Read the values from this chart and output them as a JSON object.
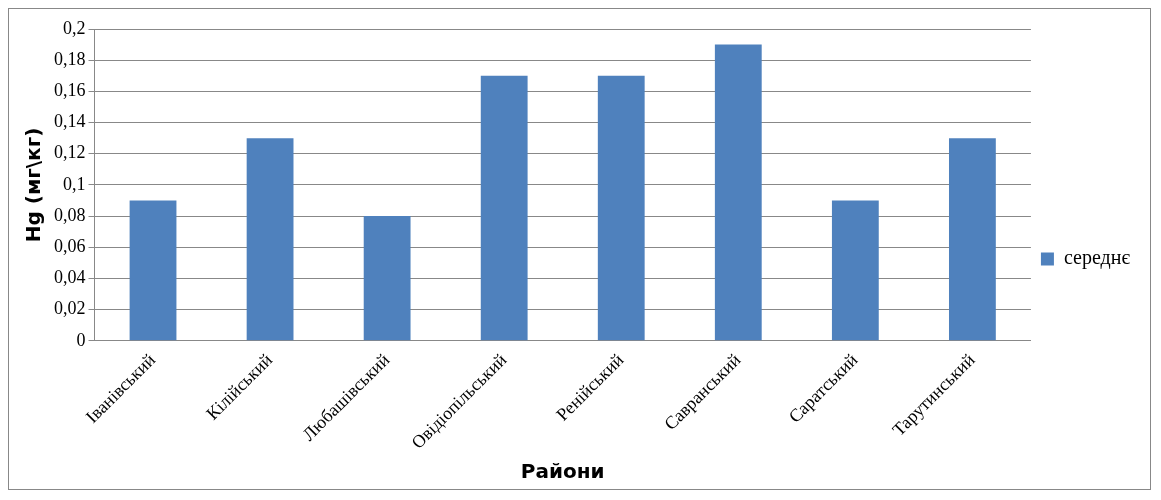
{
  "chart_data": {
    "type": "bar",
    "xlabel": "Райони",
    "ylabel": "Hg (мг\\кг)",
    "categories": [
      "Іванівський",
      "Кілійський",
      "Любашівський",
      "Овідіопільський",
      "Ренійський",
      "Савранський",
      "Саратський",
      "Тарутинський"
    ],
    "series": [
      {
        "name": "середнє",
        "color": "#4f81bd",
        "values": [
          0.09,
          0.13,
          0.08,
          0.17,
          0.17,
          0.19,
          0.09,
          0.13
        ]
      }
    ],
    "ylim": [
      0,
      0.2
    ],
    "yticks": [
      0,
      {
        "value": 0.02,
        "label": "0,02"
      },
      {
        "value": 0.04,
        "label": "0,04"
      },
      {
        "value": 0.06,
        "label": "0,06"
      },
      {
        "value": 0.08,
        "label": "0,08"
      },
      {
        "value": 0.1,
        "label": "0,1"
      },
      {
        "value": 0.12,
        "label": "0,12"
      },
      {
        "value": 0.14,
        "label": "0,14"
      },
      {
        "value": 0.16,
        "label": "0,16"
      },
      {
        "value": 0.18,
        "label": "0,18"
      },
      {
        "value": 0.2,
        "label": "0,2"
      }
    ],
    "grid": "y",
    "legend": "right"
  }
}
